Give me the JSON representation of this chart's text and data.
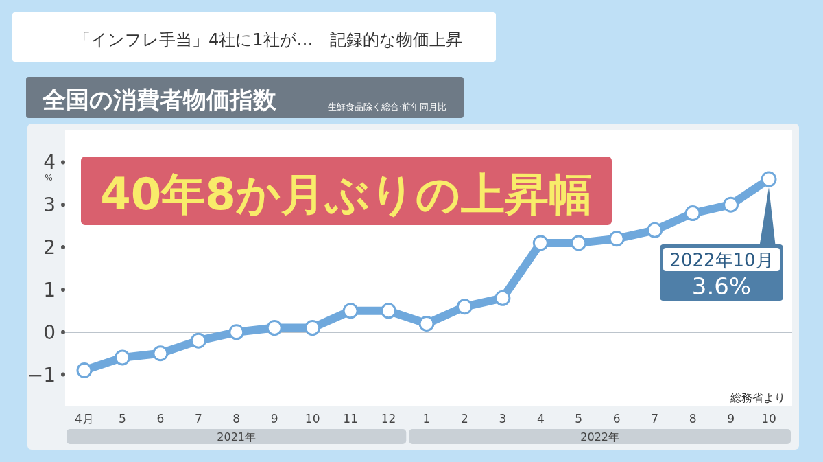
{
  "chart_data": {
    "type": "line",
    "title": "全国の消費者物価指数",
    "subtitle": "生鮮食品除く総合·前年同月比",
    "ylabel": "%",
    "categories": [
      "4月",
      "5",
      "6",
      "7",
      "8",
      "9",
      "10",
      "11",
      "12",
      "1",
      "2",
      "3",
      "4",
      "5",
      "6",
      "7",
      "8",
      "9",
      "10"
    ],
    "series": [
      {
        "color": "#6fa8dc",
        "values": [
          -0.9,
          -0.6,
          -0.5,
          -0.2,
          0.0,
          0.1,
          0.1,
          0.5,
          0.5,
          0.2,
          0.6,
          0.8,
          2.1,
          2.1,
          2.2,
          2.4,
          2.8,
          3.0,
          3.6
        ]
      }
    ],
    "ylim": [
      -1.75,
      4.75
    ],
    "yticks": [
      -1,
      0,
      1,
      2,
      3,
      4
    ],
    "marker": "circle",
    "line_style": "solid",
    "grid": false,
    "ref_lines": [
      {
        "axis": "y",
        "value": 0,
        "color": "#7a8a99"
      }
    ],
    "annotations": [
      "「インフレ手当」4社に1社が…　記録的な物価上昇",
      "40年8か月ぶりの上昇幅",
      "総務省より",
      "2021年",
      "2022年",
      "2022年10月\n3.6%"
    ]
  }
}
